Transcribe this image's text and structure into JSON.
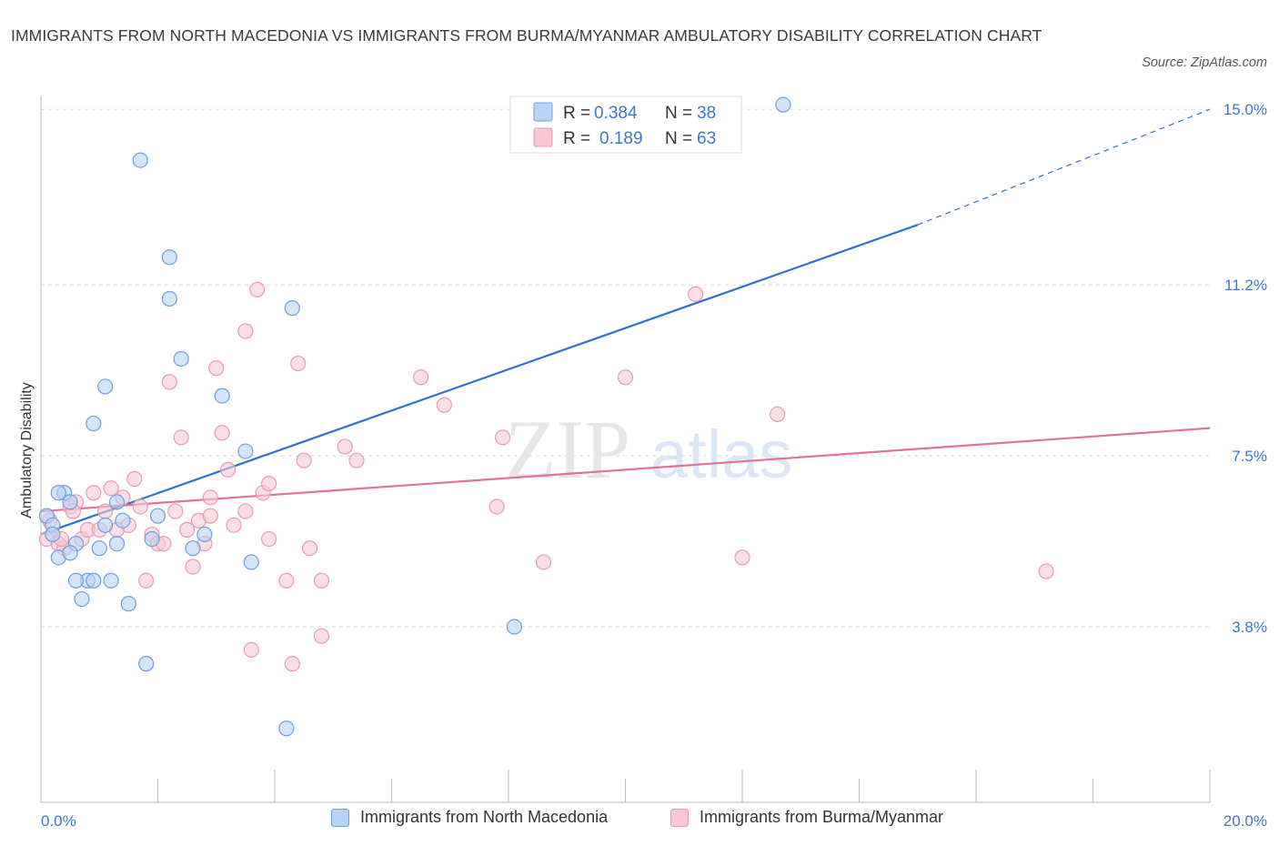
{
  "header": {
    "title": "IMMIGRANTS FROM NORTH MACEDONIA VS IMMIGRANTS FROM BURMA/MYANMAR AMBULATORY DISABILITY CORRELATION CHART",
    "source": "Source: ZipAtlas.com"
  },
  "watermark": {
    "zip": "ZIP",
    "atlas": "atlas"
  },
  "colors": {
    "blue_fill": "#b8d3f5",
    "blue_stroke": "#6d9fde",
    "blue_line": "#2f6fd0",
    "pink_fill": "#f9c8d6",
    "pink_stroke": "#e99ab1",
    "pink_line": "#e0739a",
    "grid": "#dcdcdc",
    "tick_label": "#3a78c9"
  },
  "chart_data": {
    "type": "scatter",
    "xlabel": "",
    "ylabel": "Ambulatory Disability",
    "xlim": [
      0,
      20
    ],
    "ylim": [
      0,
      15.3
    ],
    "x_tick_labels": [
      "0.0%",
      "20.0%"
    ],
    "y_ticks": [
      3.8,
      7.5,
      11.2,
      15.0
    ],
    "y_tick_labels": [
      "3.8%",
      "7.5%",
      "11.2%",
      "15.0%"
    ],
    "grid": true,
    "legend": {
      "position": "top-center",
      "rows": [
        {
          "r_label": "R =",
          "r_value": "0.384",
          "n_label": "N =",
          "n_value": "38"
        },
        {
          "r_label": "R =",
          "r_value": "0.189",
          "n_label": "N =",
          "n_value": "63"
        }
      ]
    },
    "series": [
      {
        "name": "Immigrants from North Macedonia",
        "color": "#6d9fde",
        "trend": {
          "x0": 0,
          "y0": 5.8,
          "x1": 15.0,
          "y1": 12.5,
          "dashed_to_x": 20,
          "dashed_to_y": 15.0
        },
        "points": [
          [
            0.1,
            6.2
          ],
          [
            0.2,
            6.0
          ],
          [
            0.3,
            5.3
          ],
          [
            0.4,
            6.7
          ],
          [
            0.5,
            6.5
          ],
          [
            0.6,
            5.6
          ],
          [
            0.7,
            4.4
          ],
          [
            0.8,
            4.8
          ],
          [
            0.9,
            4.8
          ],
          [
            1.0,
            5.5
          ],
          [
            1.1,
            6.0
          ],
          [
            1.2,
            4.8
          ],
          [
            1.3,
            6.5
          ],
          [
            1.4,
            6.1
          ],
          [
            1.5,
            4.3
          ],
          [
            1.7,
            13.9
          ],
          [
            1.8,
            3.0
          ],
          [
            1.9,
            5.7
          ],
          [
            2.0,
            6.2
          ],
          [
            2.2,
            11.8
          ],
          [
            2.2,
            10.9
          ],
          [
            2.4,
            9.6
          ],
          [
            2.8,
            5.8
          ],
          [
            2.6,
            5.5
          ],
          [
            3.1,
            8.8
          ],
          [
            3.5,
            7.6
          ],
          [
            3.6,
            5.2
          ],
          [
            4.2,
            1.6
          ],
          [
            4.3,
            10.7
          ],
          [
            8.1,
            3.8
          ],
          [
            12.7,
            15.1
          ],
          [
            0.5,
            5.4
          ],
          [
            0.3,
            6.7
          ],
          [
            0.6,
            4.8
          ],
          [
            1.3,
            5.6
          ],
          [
            1.1,
            9.0
          ],
          [
            0.9,
            8.2
          ],
          [
            0.2,
            5.8
          ]
        ]
      },
      {
        "name": "Immigrants from Burma/Myanmar",
        "color": "#e99ab1",
        "trend": {
          "x0": 0,
          "y0": 6.3,
          "x1": 20,
          "y1": 8.1
        },
        "points": [
          [
            0.1,
            5.7
          ],
          [
            0.2,
            5.8
          ],
          [
            0.3,
            5.6
          ],
          [
            0.4,
            5.5
          ],
          [
            0.5,
            6.4
          ],
          [
            0.6,
            6.5
          ],
          [
            0.7,
            5.7
          ],
          [
            0.8,
            5.9
          ],
          [
            0.9,
            6.7
          ],
          [
            1.0,
            5.9
          ],
          [
            1.1,
            6.3
          ],
          [
            1.2,
            6.8
          ],
          [
            1.3,
            5.9
          ],
          [
            1.5,
            6.0
          ],
          [
            1.6,
            7.0
          ],
          [
            1.7,
            6.4
          ],
          [
            1.8,
            4.8
          ],
          [
            1.9,
            5.8
          ],
          [
            2.0,
            5.6
          ],
          [
            2.1,
            5.6
          ],
          [
            2.2,
            9.1
          ],
          [
            2.3,
            6.3
          ],
          [
            2.4,
            7.9
          ],
          [
            2.5,
            5.9
          ],
          [
            2.6,
            5.1
          ],
          [
            2.7,
            6.1
          ],
          [
            2.8,
            5.6
          ],
          [
            2.9,
            6.6
          ],
          [
            3.0,
            9.4
          ],
          [
            3.1,
            8.0
          ],
          [
            3.2,
            7.2
          ],
          [
            3.3,
            6.0
          ],
          [
            3.5,
            10.2
          ],
          [
            3.5,
            6.3
          ],
          [
            3.6,
            3.3
          ],
          [
            3.7,
            11.1
          ],
          [
            3.8,
            6.7
          ],
          [
            3.9,
            5.7
          ],
          [
            3.9,
            6.9
          ],
          [
            4.2,
            4.8
          ],
          [
            4.3,
            3.0
          ],
          [
            4.4,
            9.5
          ],
          [
            4.5,
            7.4
          ],
          [
            4.6,
            5.5
          ],
          [
            4.8,
            4.8
          ],
          [
            4.8,
            3.6
          ],
          [
            5.2,
            7.7
          ],
          [
            5.4,
            7.4
          ],
          [
            6.5,
            9.2
          ],
          [
            6.9,
            8.6
          ],
          [
            7.8,
            6.4
          ],
          [
            7.9,
            7.9
          ],
          [
            8.6,
            5.2
          ],
          [
            10.0,
            9.2
          ],
          [
            11.2,
            11.0
          ],
          [
            12.0,
            5.3
          ],
          [
            12.6,
            8.4
          ],
          [
            17.2,
            5.0
          ],
          [
            0.15,
            6.1
          ],
          [
            0.35,
            5.7
          ],
          [
            0.55,
            6.3
          ],
          [
            1.4,
            6.6
          ],
          [
            2.9,
            6.2
          ]
        ]
      }
    ]
  },
  "bottom_legend": {
    "items": [
      "Immigrants from North Macedonia",
      "Immigrants from Burma/Myanmar"
    ]
  }
}
